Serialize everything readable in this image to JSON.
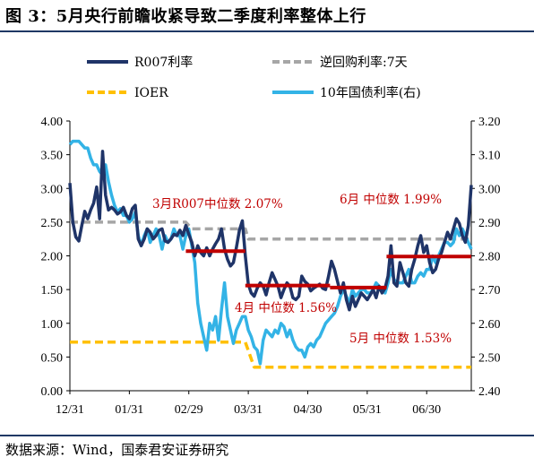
{
  "title": "图 3：5月央行前瞻收紧导致二季度利率整体上行",
  "source": "数据来源：Wind，国泰君安证券研究",
  "chart_data": {
    "type": "line",
    "x_categories": [
      "12/31",
      "01/31",
      "02/29",
      "03/31",
      "04/30",
      "05/31",
      "06/30"
    ],
    "y_left": {
      "min": 0,
      "max": 4,
      "step": 0.5,
      "ticks": [
        "0.00",
        "0.50",
        "1.00",
        "1.50",
        "2.00",
        "2.50",
        "3.00",
        "3.50",
        "4.00"
      ]
    },
    "y_right": {
      "min": 2.4,
      "max": 3.2,
      "step": 0.1,
      "ticks": [
        "2.40",
        "2.50",
        "2.60",
        "2.70",
        "2.80",
        "2.90",
        "3.00",
        "3.10",
        "3.20"
      ]
    },
    "legend": {
      "r007": "R007利率",
      "reverse_repo": "逆回购利率:7天",
      "ioer": "IOER",
      "bond10y": "10年国债利率(右)"
    },
    "colors": {
      "r007": "#1f3468",
      "reverse_repo": "#a6a6a6",
      "ioer": "#ffc000",
      "bond10y": "#33b3e6",
      "median": "#c00000"
    },
    "series": {
      "r007": {
        "axis": "left",
        "points": [
          [
            0,
            3.08
          ],
          [
            2,
            2.5
          ],
          [
            4,
            2.28
          ],
          [
            6,
            2.22
          ],
          [
            8,
            2.45
          ],
          [
            10,
            2.66
          ],
          [
            12,
            2.55
          ],
          [
            14,
            2.68
          ],
          [
            16,
            2.78
          ],
          [
            18,
            3.02
          ],
          [
            20,
            2.55
          ],
          [
            22,
            3.55
          ],
          [
            24,
            2.9
          ],
          [
            26,
            2.68
          ],
          [
            28,
            2.72
          ],
          [
            30,
            2.68
          ],
          [
            32,
            2.62
          ],
          [
            34,
            2.65
          ],
          [
            36,
            2.72
          ],
          [
            38,
            2.6
          ],
          [
            40,
            2.55
          ],
          [
            42,
            2.7
          ],
          [
            44,
            2.75
          ],
          [
            46,
            2.25
          ],
          [
            48,
            2.15
          ],
          [
            50,
            2.25
          ],
          [
            52,
            2.4
          ],
          [
            54,
            2.35
          ],
          [
            56,
            2.25
          ],
          [
            58,
            2.3
          ],
          [
            60,
            2.38
          ],
          [
            62,
            2.4
          ],
          [
            64,
            2.22
          ],
          [
            66,
            2.2
          ],
          [
            68,
            2.25
          ],
          [
            70,
            2.32
          ],
          [
            72,
            2.3
          ],
          [
            74,
            2.38
          ],
          [
            76,
            2.3
          ],
          [
            78,
            2.45
          ],
          [
            80,
            2.32
          ],
          [
            82,
            2.2
          ],
          [
            84,
            2.0
          ],
          [
            86,
            2.15
          ],
          [
            88,
            2.05
          ],
          [
            90,
            2.0
          ],
          [
            92,
            2.12
          ],
          [
            94,
            2.0
          ],
          [
            96,
            2.1
          ],
          [
            98,
            2.18
          ],
          [
            100,
            2.25
          ],
          [
            102,
            2.4
          ],
          [
            104,
            2.1
          ],
          [
            106,
            1.95
          ],
          [
            108,
            1.85
          ],
          [
            110,
            1.9
          ],
          [
            112,
            2.12
          ],
          [
            114,
            2.38
          ],
          [
            116,
            2.52
          ],
          [
            118,
            2.0
          ],
          [
            120,
            1.58
          ],
          [
            122,
            1.45
          ],
          [
            124,
            1.4
          ],
          [
            126,
            1.52
          ],
          [
            128,
            1.6
          ],
          [
            130,
            1.55
          ],
          [
            132,
            1.42
          ],
          [
            134,
            1.6
          ],
          [
            136,
            1.75
          ],
          [
            138,
            1.65
          ],
          [
            140,
            1.55
          ],
          [
            142,
            1.38
          ],
          [
            144,
            1.5
          ],
          [
            146,
            1.6
          ],
          [
            148,
            1.55
          ],
          [
            150,
            1.38
          ],
          [
            152,
            1.35
          ],
          [
            154,
            1.4
          ],
          [
            156,
            1.7
          ],
          [
            158,
            1.62
          ],
          [
            160,
            1.58
          ],
          [
            162,
            1.48
          ],
          [
            164,
            1.52
          ],
          [
            166,
            1.55
          ],
          [
            168,
            1.58
          ],
          [
            170,
            1.52
          ],
          [
            172,
            1.5
          ],
          [
            174,
            1.7
          ],
          [
            176,
            1.92
          ],
          [
            178,
            1.8
          ],
          [
            180,
            1.62
          ],
          [
            182,
            1.45
          ],
          [
            184,
            1.6
          ],
          [
            186,
            1.35
          ],
          [
            188,
            1.2
          ],
          [
            190,
            1.4
          ],
          [
            192,
            1.25
          ],
          [
            194,
            1.35
          ],
          [
            196,
            1.45
          ],
          [
            198,
            1.4
          ],
          [
            200,
            1.35
          ],
          [
            202,
            1.42
          ],
          [
            204,
            1.5
          ],
          [
            206,
            1.38
          ],
          [
            208,
            1.55
          ],
          [
            210,
            1.45
          ],
          [
            212,
            1.52
          ],
          [
            214,
            1.7
          ],
          [
            216,
            2.15
          ],
          [
            218,
            1.6
          ],
          [
            220,
            1.55
          ],
          [
            222,
            1.9
          ],
          [
            224,
            1.75
          ],
          [
            226,
            1.6
          ],
          [
            228,
            1.55
          ],
          [
            230,
            1.8
          ],
          [
            232,
            1.95
          ],
          [
            234,
            2.15
          ],
          [
            236,
            2.3
          ],
          [
            238,
            2.05
          ],
          [
            240,
            2.15
          ],
          [
            242,
            1.9
          ],
          [
            244,
            1.75
          ],
          [
            246,
            1.8
          ],
          [
            248,
            1.95
          ],
          [
            250,
            2.05
          ],
          [
            252,
            2.2
          ],
          [
            254,
            2.35
          ],
          [
            256,
            2.25
          ],
          [
            258,
            2.4
          ],
          [
            260,
            2.55
          ],
          [
            262,
            2.48
          ],
          [
            264,
            2.3
          ],
          [
            266,
            2.2
          ],
          [
            268,
            2.45
          ],
          [
            270,
            3.05
          ]
        ]
      },
      "bond10y": {
        "axis": "right",
        "points": [
          [
            0,
            3.13
          ],
          [
            2,
            3.14
          ],
          [
            4,
            3.14
          ],
          [
            6,
            3.14
          ],
          [
            8,
            3.13
          ],
          [
            10,
            3.12
          ],
          [
            12,
            3.12
          ],
          [
            14,
            3.09
          ],
          [
            16,
            3.07
          ],
          [
            18,
            3.07
          ],
          [
            20,
            3.05
          ],
          [
            22,
            3.04
          ],
          [
            24,
            3.07
          ],
          [
            26,
            3.02
          ],
          [
            28,
            2.98
          ],
          [
            30,
            2.95
          ],
          [
            32,
            2.93
          ],
          [
            34,
            2.94
          ],
          [
            36,
            2.92
          ],
          [
            38,
            2.92
          ],
          [
            40,
            2.9
          ],
          [
            42,
            2.91
          ],
          [
            44,
            2.93
          ],
          [
            46,
            2.86
          ],
          [
            48,
            2.83
          ],
          [
            50,
            2.86
          ],
          [
            52,
            2.88
          ],
          [
            54,
            2.84
          ],
          [
            56,
            2.86
          ],
          [
            58,
            2.88
          ],
          [
            60,
            2.86
          ],
          [
            62,
            2.82
          ],
          [
            64,
            2.86
          ],
          [
            66,
            2.84
          ],
          [
            68,
            2.85
          ],
          [
            70,
            2.88
          ],
          [
            72,
            2.86
          ],
          [
            74,
            2.86
          ],
          [
            76,
            2.82
          ],
          [
            78,
            2.86
          ],
          [
            80,
            2.88
          ],
          [
            82,
            2.83
          ],
          [
            84,
            2.78
          ],
          [
            86,
            2.66
          ],
          [
            88,
            2.6
          ],
          [
            90,
            2.56
          ],
          [
            92,
            2.52
          ],
          [
            94,
            2.6
          ],
          [
            96,
            2.58
          ],
          [
            98,
            2.62
          ],
          [
            100,
            2.55
          ],
          [
            102,
            2.64
          ],
          [
            104,
            2.72
          ],
          [
            106,
            2.62
          ],
          [
            108,
            2.58
          ],
          [
            110,
            2.54
          ],
          [
            112,
            2.58
          ],
          [
            114,
            2.6
          ],
          [
            116,
            2.62
          ],
          [
            118,
            2.62
          ],
          [
            120,
            2.58
          ],
          [
            122,
            2.56
          ],
          [
            124,
            2.53
          ],
          [
            126,
            2.52
          ],
          [
            128,
            2.48
          ],
          [
            130,
            2.55
          ],
          [
            132,
            2.58
          ],
          [
            134,
            2.57
          ],
          [
            136,
            2.56
          ],
          [
            138,
            2.58
          ],
          [
            140,
            2.57
          ],
          [
            142,
            2.6
          ],
          [
            144,
            2.59
          ],
          [
            146,
            2.56
          ],
          [
            148,
            2.58
          ],
          [
            150,
            2.55
          ],
          [
            152,
            2.53
          ],
          [
            154,
            2.52
          ],
          [
            156,
            2.52
          ],
          [
            158,
            2.5
          ],
          [
            160,
            2.53
          ],
          [
            162,
            2.54
          ],
          [
            164,
            2.53
          ],
          [
            166,
            2.55
          ],
          [
            168,
            2.56
          ],
          [
            170,
            2.58
          ],
          [
            172,
            2.6
          ],
          [
            174,
            2.61
          ],
          [
            176,
            2.62
          ],
          [
            178,
            2.63
          ],
          [
            180,
            2.65
          ],
          [
            182,
            2.68
          ],
          [
            184,
            2.7
          ],
          [
            186,
            2.68
          ],
          [
            188,
            2.66
          ],
          [
            190,
            2.7
          ],
          [
            192,
            2.68
          ],
          [
            194,
            2.69
          ],
          [
            196,
            2.7
          ],
          [
            198,
            2.7
          ],
          [
            200,
            2.69
          ],
          [
            202,
            2.69
          ],
          [
            204,
            2.7
          ],
          [
            206,
            2.72
          ],
          [
            208,
            2.71
          ],
          [
            210,
            2.7
          ],
          [
            212,
            2.69
          ],
          [
            214,
            2.72
          ],
          [
            216,
            2.76
          ],
          [
            218,
            2.73
          ],
          [
            220,
            2.72
          ],
          [
            222,
            2.72
          ],
          [
            224,
            2.72
          ],
          [
            226,
            2.74
          ],
          [
            228,
            2.76
          ],
          [
            230,
            2.72
          ],
          [
            232,
            2.72
          ],
          [
            234,
            2.74
          ],
          [
            236,
            2.75
          ],
          [
            238,
            2.74
          ],
          [
            240,
            2.76
          ],
          [
            242,
            2.76
          ],
          [
            244,
            2.8
          ],
          [
            246,
            2.78
          ],
          [
            248,
            2.8
          ],
          [
            250,
            2.82
          ],
          [
            252,
            2.84
          ],
          [
            254,
            2.84
          ],
          [
            256,
            2.83
          ],
          [
            258,
            2.84
          ],
          [
            260,
            2.88
          ],
          [
            262,
            2.86
          ],
          [
            264,
            2.88
          ],
          [
            266,
            2.86
          ],
          [
            268,
            2.84
          ],
          [
            270,
            2.82
          ]
        ]
      },
      "reverse_repo": {
        "axis": "left",
        "style": "dashed",
        "points": [
          [
            0,
            2.5
          ],
          [
            78,
            2.5
          ],
          [
            82,
            2.4
          ],
          [
            118,
            2.4
          ],
          [
            120,
            2.25
          ],
          [
            270,
            2.25
          ]
        ]
      },
      "ioer": {
        "axis": "left",
        "style": "dashed",
        "points": [
          [
            0,
            0.72
          ],
          [
            118,
            0.72
          ],
          [
            124,
            0.35
          ],
          [
            270,
            0.35
          ]
        ]
      },
      "medians": [
        {
          "label": "3月R007中位数 2.07%",
          "x_start": 78,
          "x_end": 118,
          "value": 2.07
        },
        {
          "label": "4月 中位数 1.56%",
          "x_start": 118,
          "x_end": 175,
          "value": 1.56
        },
        {
          "label": "5月 中位数 1.53%",
          "x_start": 175,
          "x_end": 213,
          "value": 1.53
        },
        {
          "label": "6月 中位数 1.99%",
          "x_start": 213,
          "x_end": 270,
          "value": 1.99
        }
      ]
    }
  }
}
